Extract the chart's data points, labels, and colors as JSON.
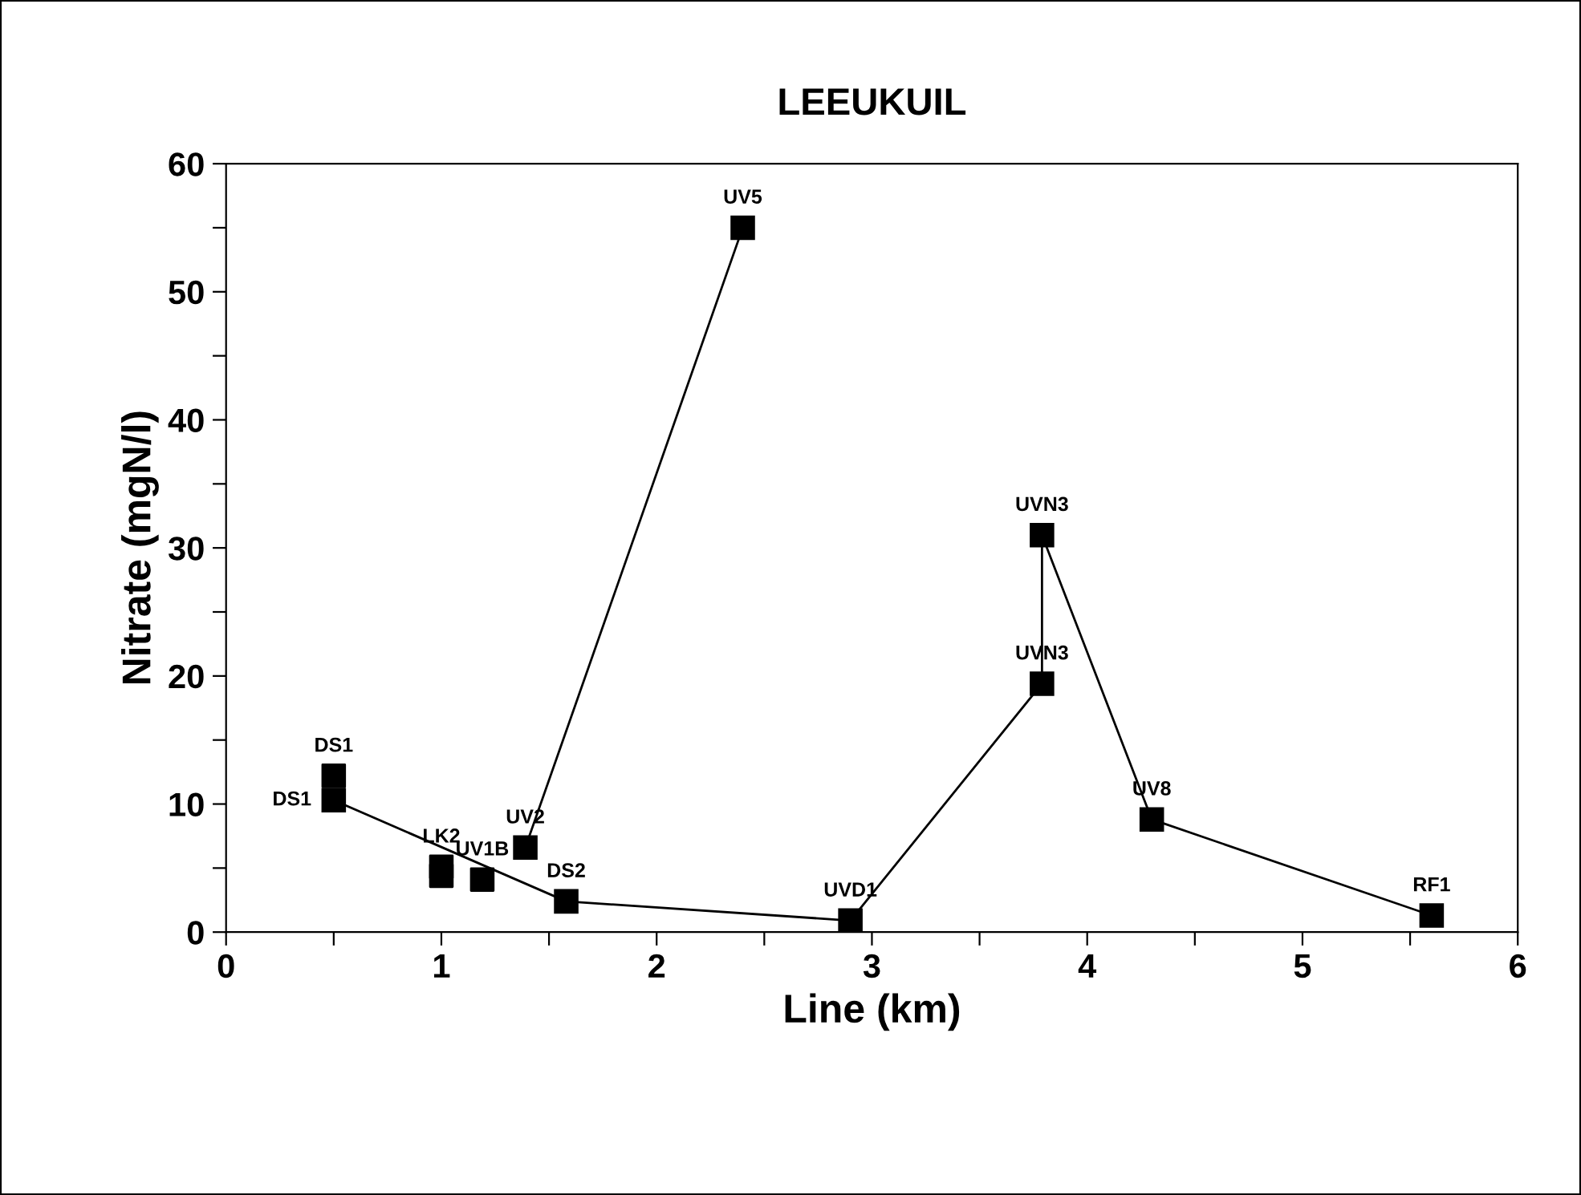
{
  "chart_data": {
    "type": "line",
    "title": "LEEUKUIL",
    "xlabel": "Line (km)",
    "ylabel": "Nitrate (mgN/l)",
    "xlim": [
      0,
      6
    ],
    "ylim": [
      0,
      60
    ],
    "xticks": [
      0,
      {
        "value": 0.5,
        "label": null
      },
      1,
      {
        "value": 1.5,
        "label": null
      },
      2,
      {
        "value": 2.5,
        "label": null
      },
      3,
      {
        "value": 3.5,
        "label": null
      },
      4,
      {
        "value": 4.5,
        "label": null
      },
      5,
      {
        "value": 5.5,
        "label": null
      },
      6
    ],
    "yticks": [
      0,
      {
        "value": 5,
        "label": null
      },
      10,
      {
        "value": 15,
        "label": null
      },
      20,
      {
        "value": 25,
        "label": null
      },
      30,
      {
        "value": 35,
        "label": null
      },
      40,
      {
        "value": 45,
        "label": null
      },
      50,
      {
        "value": 55,
        "label": null
      },
      60
    ],
    "marker": "square",
    "grid": false,
    "legend": false,
    "series": [
      {
        "color": "#000000",
        "x": [
          0.5,
          1.58,
          2.9,
          3.79,
          3.79,
          4.3,
          5.6
        ],
        "values": [
          10.3,
          2.4,
          0.9,
          19.4,
          31.0,
          8.8,
          1.3
        ]
      },
      {
        "color": "#000000",
        "x": [
          1.39,
          2.4
        ],
        "values": [
          6.6,
          55.0
        ]
      },
      {
        "type": "scatter",
        "color": "#000000",
        "x": [
          0.5,
          1.0,
          1.0,
          1.19
        ],
        "values": [
          12.2,
          5.1,
          4.4,
          4.1
        ]
      }
    ],
    "annotations": [
      {
        "text": "DS1",
        "x": 0.5,
        "y": 12.2
      },
      {
        "text": "DS1",
        "x": 0.5,
        "y": 10.3
      },
      {
        "text": "LK2",
        "x": 1.0,
        "y": 5.1
      },
      {
        "text": "UV1B",
        "x": 1.19,
        "y": 4.1
      },
      {
        "text": "UV2",
        "x": 1.39,
        "y": 6.6
      },
      {
        "text": "UV5",
        "x": 2.4,
        "y": 55.0
      },
      {
        "text": "DS2",
        "x": 1.58,
        "y": 2.4
      },
      {
        "text": "UVD1",
        "x": 2.9,
        "y": 0.9
      },
      {
        "text": "UVN3",
        "x": 3.79,
        "y": 19.4
      },
      {
        "text": "UVN3",
        "x": 3.79,
        "y": 31.0
      },
      {
        "text": "UV8",
        "x": 4.3,
        "y": 8.8
      },
      {
        "text": "RF1",
        "x": 5.6,
        "y": 1.3
      }
    ]
  }
}
